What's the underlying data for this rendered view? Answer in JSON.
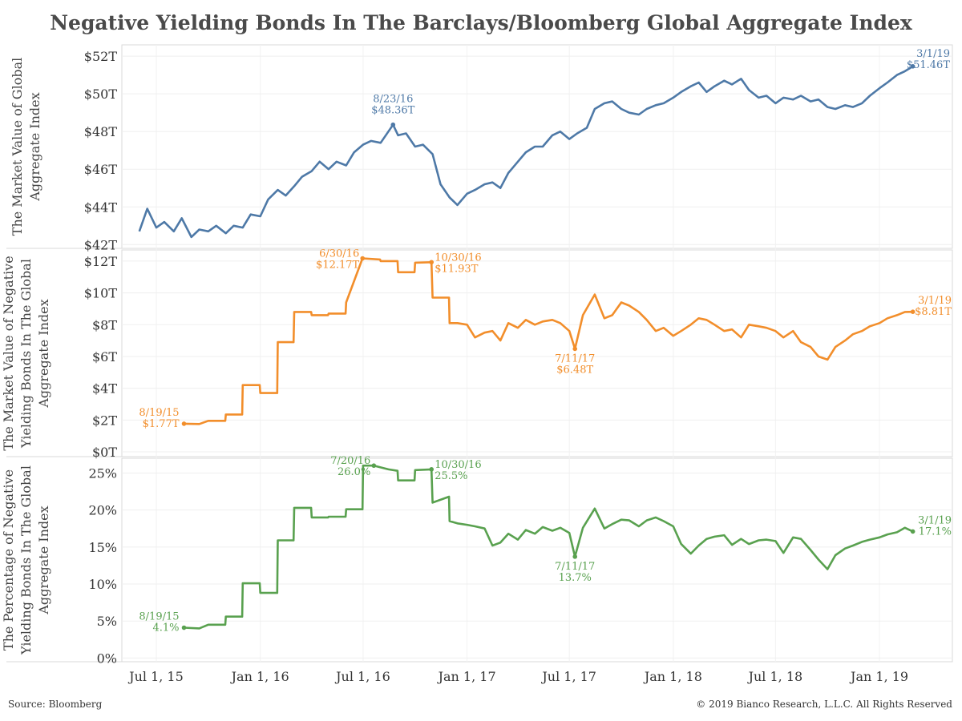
{
  "title": "Negative Yielding Bonds In The Barclays/Bloomberg Global Aggregate Index",
  "footer": {
    "source": "Source: Bloomberg",
    "copyright": "© 2019 Bianco Research, L.L.C. All Rights Reserved"
  },
  "colors": {
    "market": "#4e79a7",
    "negative_value": "#f28e2b",
    "negative_pct": "#59a14f"
  },
  "chart_data": [
    {
      "type": "line",
      "name": "market-value",
      "ylabel": [
        "The Market Value of Global",
        "Aggregate Index"
      ],
      "ylim": [
        41.8,
        52.6
      ],
      "yticks": [
        42,
        44,
        46,
        48,
        50,
        52
      ],
      "ytick_labels": [
        "$42T",
        "$44T",
        "$46T",
        "$48T",
        "$50T",
        "$52T"
      ],
      "x": [
        "2015-06-01",
        "2015-06-15",
        "2015-07-01",
        "2015-07-15",
        "2015-08-01",
        "2015-08-15",
        "2015-09-01",
        "2015-09-15",
        "2015-10-01",
        "2015-10-15",
        "2015-11-01",
        "2015-11-15",
        "2015-12-01",
        "2015-12-15",
        "2016-01-01",
        "2016-01-15",
        "2016-02-01",
        "2016-02-15",
        "2016-03-01",
        "2016-03-15",
        "2016-04-01",
        "2016-04-15",
        "2016-05-01",
        "2016-05-15",
        "2016-06-01",
        "2016-06-15",
        "2016-07-01",
        "2016-07-15",
        "2016-08-01",
        "2016-08-23",
        "2016-09-01",
        "2016-09-15",
        "2016-10-01",
        "2016-10-15",
        "2016-11-01",
        "2016-11-15",
        "2016-12-01",
        "2016-12-15",
        "2017-01-01",
        "2017-01-15",
        "2017-02-01",
        "2017-02-15",
        "2017-03-01",
        "2017-03-15",
        "2017-04-01",
        "2017-04-15",
        "2017-05-01",
        "2017-05-15",
        "2017-06-01",
        "2017-06-15",
        "2017-07-01",
        "2017-07-15",
        "2017-08-01",
        "2017-08-15",
        "2017-09-01",
        "2017-09-15",
        "2017-10-01",
        "2017-10-15",
        "2017-11-01",
        "2017-11-15",
        "2017-12-01",
        "2017-12-15",
        "2018-01-01",
        "2018-01-15",
        "2018-02-01",
        "2018-02-15",
        "2018-03-01",
        "2018-03-15",
        "2018-04-01",
        "2018-04-15",
        "2018-05-01",
        "2018-05-15",
        "2018-06-01",
        "2018-06-15",
        "2018-07-01",
        "2018-07-15",
        "2018-08-01",
        "2018-08-15",
        "2018-09-01",
        "2018-09-15",
        "2018-10-01",
        "2018-10-15",
        "2018-11-01",
        "2018-11-15",
        "2018-12-01",
        "2018-12-15",
        "2019-01-01",
        "2019-01-15",
        "2019-02-01",
        "2019-02-15",
        "2019-03-01"
      ],
      "values": [
        42.7,
        43.9,
        42.9,
        43.2,
        42.7,
        43.4,
        42.4,
        42.8,
        42.7,
        43.0,
        42.6,
        43.0,
        42.9,
        43.6,
        43.5,
        44.4,
        44.9,
        44.6,
        45.1,
        45.6,
        45.9,
        46.4,
        46.0,
        46.4,
        46.2,
        46.9,
        47.3,
        47.5,
        47.4,
        48.36,
        47.8,
        47.9,
        47.2,
        47.3,
        46.8,
        45.2,
        44.5,
        44.1,
        44.7,
        44.9,
        45.2,
        45.3,
        45.0,
        45.8,
        46.4,
        46.9,
        47.2,
        47.2,
        47.8,
        48.0,
        47.6,
        47.9,
        48.2,
        49.2,
        49.5,
        49.6,
        49.2,
        49.0,
        48.9,
        49.2,
        49.4,
        49.5,
        49.8,
        50.1,
        50.4,
        50.6,
        50.1,
        50.4,
        50.7,
        50.5,
        50.8,
        50.2,
        49.8,
        49.9,
        49.5,
        49.8,
        49.7,
        49.9,
        49.6,
        49.7,
        49.3,
        49.2,
        49.4,
        49.3,
        49.5,
        49.9,
        50.3,
        50.6,
        51.0,
        51.2,
        51.46
      ]
    },
    {
      "type": "line",
      "name": "negative-yield-value",
      "ylabel": [
        "The Market Value of Negative",
        "Yielding Bonds In The Global",
        "Aggregate Index"
      ],
      "ylim": [
        -0.3,
        12.7
      ],
      "yticks": [
        0,
        2,
        4,
        6,
        8,
        10,
        12
      ],
      "ytick_labels": [
        "$0T",
        "$2T",
        "$4T",
        "$6T",
        "$8T",
        "$10T",
        "$12T"
      ],
      "x": [
        "2015-08-19",
        "2015-09-15",
        "2015-10-01",
        "2015-10-31",
        "2015-11-01",
        "2015-11-30",
        "2015-12-01",
        "2015-12-31",
        "2016-01-01",
        "2016-01-31",
        "2016-02-01",
        "2016-02-29",
        "2016-03-01",
        "2016-03-31",
        "2016-04-01",
        "2016-04-30",
        "2016-05-01",
        "2016-05-31",
        "2016-06-01",
        "2016-06-30",
        "2016-07-31",
        "2016-08-01",
        "2016-08-31",
        "2016-09-01",
        "2016-09-30",
        "2016-10-01",
        "2016-10-30",
        "2016-11-01",
        "2016-11-30",
        "2016-12-01",
        "2016-12-15",
        "2017-01-01",
        "2017-01-15",
        "2017-02-01",
        "2017-02-15",
        "2017-03-01",
        "2017-03-15",
        "2017-04-01",
        "2017-04-15",
        "2017-05-01",
        "2017-05-15",
        "2017-06-01",
        "2017-06-15",
        "2017-07-01",
        "2017-07-11",
        "2017-07-25",
        "2017-08-15",
        "2017-09-01",
        "2017-09-15",
        "2017-10-01",
        "2017-10-15",
        "2017-11-01",
        "2017-11-15",
        "2017-12-01",
        "2017-12-15",
        "2018-01-01",
        "2018-01-15",
        "2018-02-01",
        "2018-02-15",
        "2018-03-01",
        "2018-03-15",
        "2018-04-01",
        "2018-04-15",
        "2018-05-01",
        "2018-05-15",
        "2018-06-01",
        "2018-06-15",
        "2018-07-01",
        "2018-07-15",
        "2018-08-01",
        "2018-08-15",
        "2018-09-01",
        "2018-09-15",
        "2018-10-01",
        "2018-10-15",
        "2018-11-01",
        "2018-11-15",
        "2018-12-01",
        "2018-12-15",
        "2019-01-01",
        "2019-01-15",
        "2019-02-01",
        "2019-02-15",
        "2019-03-01"
      ],
      "values": [
        1.77,
        1.75,
        1.95,
        1.95,
        2.35,
        2.35,
        4.2,
        4.2,
        3.7,
        3.7,
        6.9,
        6.9,
        8.8,
        8.8,
        8.6,
        8.6,
        8.7,
        8.7,
        9.4,
        12.17,
        12.1,
        12.0,
        12.0,
        11.3,
        11.3,
        11.9,
        11.93,
        9.7,
        9.7,
        8.1,
        8.1,
        8.0,
        7.2,
        7.5,
        7.6,
        7.0,
        8.1,
        7.8,
        8.3,
        8.0,
        8.2,
        8.3,
        8.1,
        7.6,
        6.48,
        8.6,
        9.9,
        8.4,
        8.6,
        9.4,
        9.2,
        8.8,
        8.3,
        7.6,
        7.8,
        7.3,
        7.6,
        8.0,
        8.4,
        8.3,
        8.0,
        7.6,
        7.7,
        7.2,
        8.0,
        7.9,
        7.8,
        7.6,
        7.2,
        7.6,
        6.9,
        6.6,
        6.0,
        5.8,
        6.6,
        7.0,
        7.4,
        7.6,
        7.9,
        8.1,
        8.4,
        8.6,
        8.8,
        8.81
      ]
    },
    {
      "type": "line",
      "name": "negative-yield-percentage",
      "ylabel": [
        "The Percentage of Negative",
        "Yielding Bonds In The Global",
        "Aggregate Index"
      ],
      "ylim": [
        -0.5,
        27
      ],
      "yticks": [
        0,
        5,
        10,
        15,
        20,
        25
      ],
      "ytick_labels": [
        "0%",
        "5%",
        "10%",
        "15%",
        "20%",
        "25%"
      ],
      "x": [
        "2015-08-19",
        "2015-09-15",
        "2015-10-01",
        "2015-10-31",
        "2015-11-01",
        "2015-11-30",
        "2015-12-01",
        "2015-12-31",
        "2016-01-01",
        "2016-01-31",
        "2016-02-01",
        "2016-02-29",
        "2016-03-01",
        "2016-03-31",
        "2016-04-01",
        "2016-04-30",
        "2016-05-01",
        "2016-05-31",
        "2016-06-01",
        "2016-06-30",
        "2016-07-01",
        "2016-07-20",
        "2016-08-15",
        "2016-08-31",
        "2016-09-01",
        "2016-09-30",
        "2016-10-01",
        "2016-10-30",
        "2016-11-01",
        "2016-11-30",
        "2016-12-01",
        "2016-12-15",
        "2017-01-01",
        "2017-01-15",
        "2017-02-01",
        "2017-02-15",
        "2017-03-01",
        "2017-03-15",
        "2017-04-01",
        "2017-04-15",
        "2017-05-01",
        "2017-05-15",
        "2017-06-01",
        "2017-06-15",
        "2017-07-01",
        "2017-07-11",
        "2017-07-25",
        "2017-08-15",
        "2017-09-01",
        "2017-09-15",
        "2017-10-01",
        "2017-10-15",
        "2017-11-01",
        "2017-11-15",
        "2017-12-01",
        "2017-12-15",
        "2018-01-01",
        "2018-01-15",
        "2018-02-01",
        "2018-02-15",
        "2018-03-01",
        "2018-03-15",
        "2018-04-01",
        "2018-04-15",
        "2018-05-01",
        "2018-05-15",
        "2018-06-01",
        "2018-06-15",
        "2018-07-01",
        "2018-07-15",
        "2018-08-01",
        "2018-08-15",
        "2018-09-01",
        "2018-09-15",
        "2018-10-01",
        "2018-10-15",
        "2018-11-01",
        "2018-11-15",
        "2018-12-01",
        "2018-12-15",
        "2019-01-01",
        "2019-01-15",
        "2019-02-01",
        "2019-02-15",
        "2019-03-01"
      ],
      "values": [
        4.1,
        4.0,
        4.5,
        4.5,
        5.6,
        5.6,
        10.1,
        10.1,
        8.8,
        8.8,
        15.9,
        15.9,
        20.3,
        20.3,
        19.0,
        19.0,
        19.1,
        19.1,
        20.1,
        20.1,
        26.0,
        26.0,
        25.5,
        25.3,
        24.0,
        24.0,
        25.4,
        25.5,
        21.0,
        21.8,
        18.5,
        18.2,
        18.0,
        17.8,
        17.5,
        15.2,
        15.6,
        16.8,
        16.0,
        17.3,
        16.8,
        17.7,
        17.2,
        17.6,
        16.9,
        13.7,
        17.6,
        20.2,
        17.5,
        18.1,
        18.7,
        18.6,
        17.8,
        18.6,
        19.0,
        18.5,
        17.8,
        15.4,
        14.1,
        15.2,
        16.1,
        16.4,
        16.6,
        15.3,
        16.1,
        15.4,
        15.9,
        16.0,
        15.8,
        14.2,
        16.3,
        16.1,
        14.6,
        13.3,
        12.0,
        13.9,
        14.8,
        15.2,
        15.7,
        16.0,
        16.3,
        16.7,
        17.0,
        17.6,
        17.1
      ]
    }
  ],
  "x_axis": {
    "ticks": [
      "2015-07-01",
      "2016-01-01",
      "2016-07-01",
      "2017-01-01",
      "2017-07-01",
      "2018-01-01",
      "2018-07-01",
      "2019-01-01"
    ],
    "labels": [
      "Jul 1, 15",
      "Jan 1, 16",
      "Jul 1, 16",
      "Jan 1, 17",
      "Jul 1, 17",
      "Jan 1, 18",
      "Jul 1, 18",
      "Jan 1, 19"
    ],
    "range": [
      "2015-05-01",
      "2019-05-10"
    ]
  },
  "annotations": [
    {
      "panel": 0,
      "date": "2016-08-23",
      "value": 48.36,
      "lines": [
        "8/23/16",
        "$48.36T"
      ],
      "pos": "above"
    },
    {
      "panel": 0,
      "date": "2019-03-01",
      "value": 51.46,
      "lines": [
        "3/1/19",
        "$51.46T"
      ],
      "pos": "right-top"
    },
    {
      "panel": 1,
      "date": "2015-08-19",
      "value": 1.77,
      "lines": [
        "8/19/15",
        "$1.77T"
      ],
      "pos": "left"
    },
    {
      "panel": 1,
      "date": "2016-06-30",
      "value": 12.17,
      "lines": [
        "6/30/16",
        "$12.17T"
      ],
      "pos": "left-top"
    },
    {
      "panel": 1,
      "date": "2016-10-30",
      "value": 11.93,
      "lines": [
        "10/30/16",
        "$11.93T"
      ],
      "pos": "right-top"
    },
    {
      "panel": 1,
      "date": "2017-07-11",
      "value": 6.48,
      "lines": [
        "7/11/17",
        "$6.48T"
      ],
      "pos": "below"
    },
    {
      "panel": 1,
      "date": "2019-03-01",
      "value": 8.81,
      "lines": [
        "3/1/19",
        "$8.81T"
      ],
      "pos": "right"
    },
    {
      "panel": 2,
      "date": "2015-08-19",
      "value": 4.1,
      "lines": [
        "8/19/15",
        "4.1%"
      ],
      "pos": "left"
    },
    {
      "panel": 2,
      "date": "2016-07-20",
      "value": 26.0,
      "lines": [
        "7/20/16",
        "26.0%"
      ],
      "pos": "left-top"
    },
    {
      "panel": 2,
      "date": "2016-10-30",
      "value": 25.5,
      "lines": [
        "10/30/16",
        "25.5%"
      ],
      "pos": "right-top"
    },
    {
      "panel": 2,
      "date": "2017-07-11",
      "value": 13.7,
      "lines": [
        "7/11/17",
        "13.7%"
      ],
      "pos": "below"
    },
    {
      "panel": 2,
      "date": "2019-03-01",
      "value": 17.1,
      "lines": [
        "3/1/19",
        "17.1%"
      ],
      "pos": "right"
    }
  ]
}
